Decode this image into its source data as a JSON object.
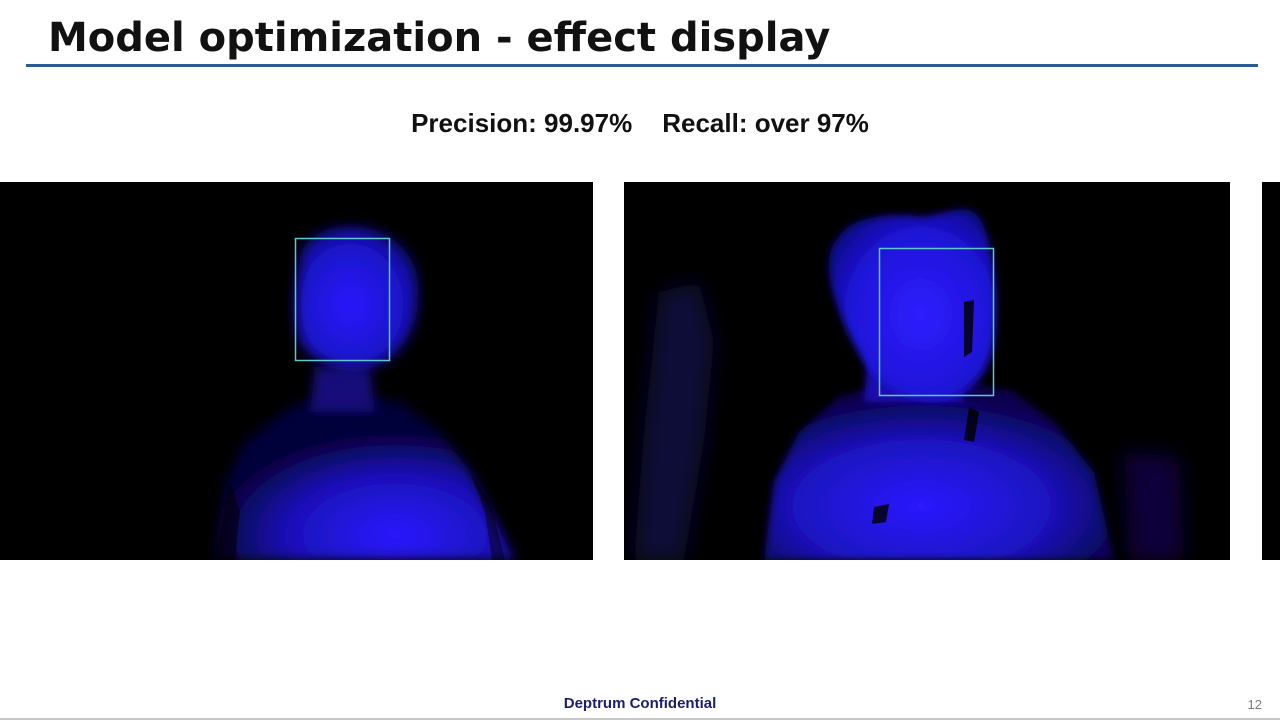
{
  "slide": {
    "title": "Model optimization - effect display",
    "metrics": {
      "precision": "Precision: 99.97%",
      "recall": "Recall: over 97%"
    },
    "images": [
      {
        "alt": "depth image frame 1 with detection box"
      },
      {
        "alt": "depth image frame 2 with detection box"
      },
      {
        "alt": "depth image frame 3 partially visible"
      }
    ],
    "footer": {
      "confidential": "Deptrum Confidential",
      "page_number": "12"
    }
  },
  "colors": {
    "title_rule": "#2b5a95",
    "depth_blue": "#2a1aff",
    "box_stroke": "#5fc8c8",
    "footer_text": "#1b1f6b"
  }
}
